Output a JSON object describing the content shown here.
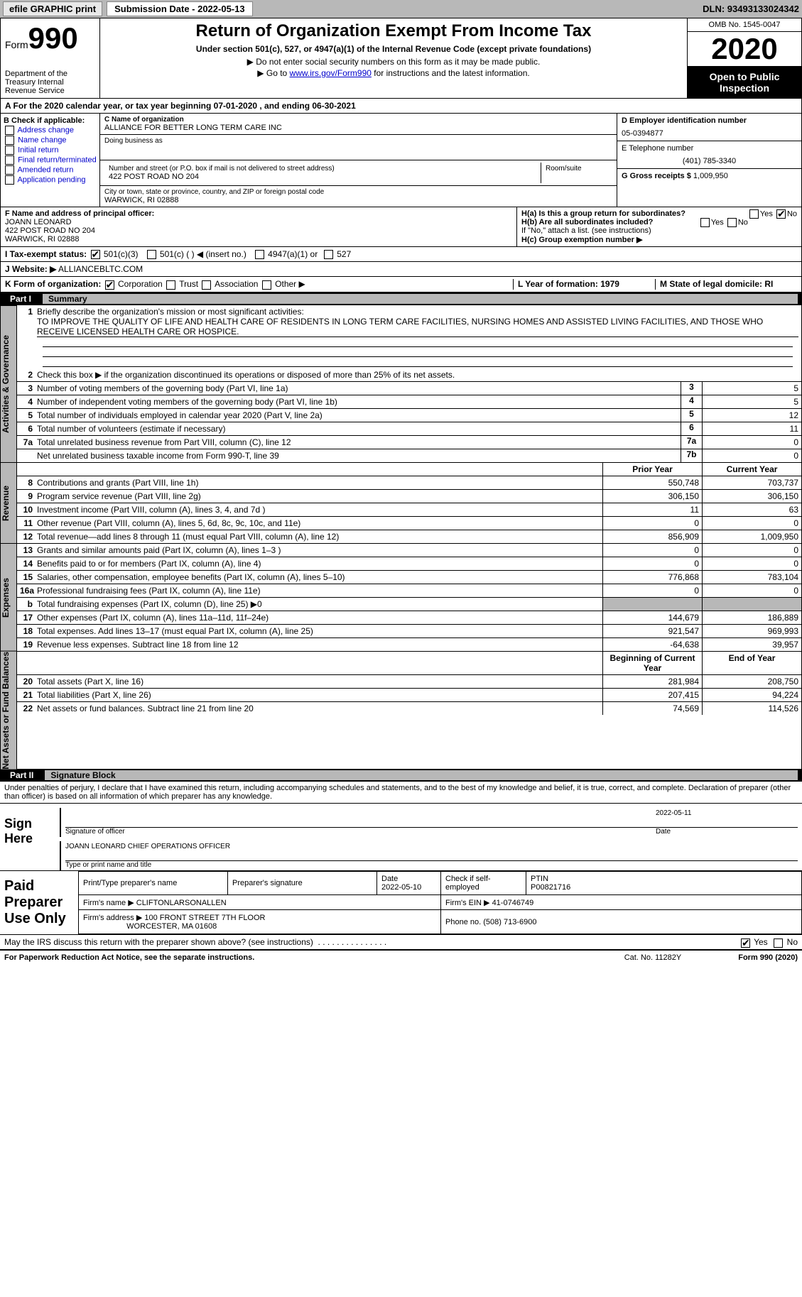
{
  "topbar": {
    "efile": "efile GRAPHIC print",
    "submission_label": "Submission Date - 2022-05-13",
    "dln": "DLN: 93493133024342"
  },
  "header": {
    "form_prefix": "Form",
    "form_number": "990",
    "dept": "Department of the Treasury\nInternal Revenue Service",
    "title": "Return of Organization Exempt From Income Tax",
    "subtitle": "Under section 501(c), 527, or 4947(a)(1) of the Internal Revenue Code (except private foundations)",
    "note1": "▶ Do not enter social security numbers on this form as it may be made public.",
    "note2_pre": "▶ Go to ",
    "note2_link": "www.irs.gov/Form990",
    "note2_post": " for instructions and the latest information.",
    "omb": "OMB No. 1545-0047",
    "year": "2020",
    "open": "Open to Public Inspection"
  },
  "rowA": "A For the 2020 calendar year, or tax year beginning 07-01-2020    , and ending 06-30-2021",
  "B": {
    "hdr": "B Check if applicable:",
    "items": [
      "Address change",
      "Name change",
      "Initial return",
      "Final return/terminated",
      "Amended return",
      "Application pending"
    ]
  },
  "C": {
    "name_lbl": "C Name of organization",
    "name": "ALLIANCE FOR BETTER LONG TERM CARE INC",
    "dba_lbl": "Doing business as",
    "street_lbl": "Number and street (or P.O. box if mail is not delivered to street address)",
    "room_lbl": "Room/suite",
    "street": "422 POST ROAD NO 204",
    "city_lbl": "City or town, state or province, country, and ZIP or foreign postal code",
    "city": "WARWICK, RI  02888"
  },
  "D": {
    "lbl": "D Employer identification number",
    "val": "05-0394877"
  },
  "E": {
    "lbl": "E Telephone number",
    "val": "(401) 785-3340"
  },
  "G": {
    "lbl": "G Gross receipts $",
    "val": "1,009,950"
  },
  "F": {
    "lbl": "F  Name and address of principal officer:",
    "name": "JOANN LEONARD",
    "addr1": "422 POST ROAD NO 204",
    "addr2": "WARWICK, RI  02888"
  },
  "H": {
    "a": "H(a)  Is this a group return for subordinates?",
    "b": "H(b)  Are all subordinates included?",
    "note": "If \"No,\" attach a list. (see instructions)",
    "c": "H(c)  Group exemption number ▶",
    "yes": "Yes",
    "no": "No"
  },
  "I": {
    "lbl": "I    Tax-exempt status:",
    "o1": "501(c)(3)",
    "o2": "501(c) (  ) ◀ (insert no.)",
    "o3": "4947(a)(1) or",
    "o4": "527"
  },
  "J": {
    "lbl": "J   Website: ▶",
    "val": " ALLIANCEBLTC.COM"
  },
  "K": {
    "lbl": "K Form of organization:",
    "o1": "Corporation",
    "o2": "Trust",
    "o3": "Association",
    "o4": "Other ▶"
  },
  "L": "L Year of formation: 1979",
  "M": "M State of legal domicile: RI",
  "part1": {
    "num": "Part I",
    "title": "Summary"
  },
  "summary": {
    "l1_lbl": "Briefly describe the organization's mission or most significant activities:",
    "l1_txt": "TO IMPROVE THE QUALITY OF LIFE AND HEALTH CARE OF RESIDENTS IN LONG TERM CARE FACILITIES, NURSING HOMES AND ASSISTED LIVING FACILITIES, AND THOSE WHO RECEIVE LICENSED HEALTH CARE OR HOSPICE.",
    "l2": "Check this box ▶       if the organization discontinued its operations or disposed of more than 25% of its net assets.",
    "l3": "Number of voting members of the governing body (Part VI, line 1a)",
    "l4": "Number of independent voting members of the governing body (Part VI, line 1b)",
    "l5": "Total number of individuals employed in calendar year 2020 (Part V, line 2a)",
    "l6": "Total number of volunteers (estimate if necessary)",
    "l7a": "Total unrelated business revenue from Part VIII, column (C), line 12",
    "l7b": "Net unrelated business taxable income from Form 990-T, line 39",
    "v3": "5",
    "v4": "5",
    "v5": "12",
    "v6": "11",
    "v7a": "0",
    "v7b": "0",
    "pycy_hdr_prior": "Prior Year",
    "pycy_hdr_curr": "Current Year",
    "rows_rev": [
      {
        "n": "8",
        "t": "Contributions and grants (Part VIII, line 1h)",
        "py": "550,748",
        "cy": "703,737"
      },
      {
        "n": "9",
        "t": "Program service revenue (Part VIII, line 2g)",
        "py": "306,150",
        "cy": "306,150"
      },
      {
        "n": "10",
        "t": "Investment income (Part VIII, column (A), lines 3, 4, and 7d )",
        "py": "11",
        "cy": "63"
      },
      {
        "n": "11",
        "t": "Other revenue (Part VIII, column (A), lines 5, 6d, 8c, 9c, 10c, and 11e)",
        "py": "0",
        "cy": "0"
      },
      {
        "n": "12",
        "t": "Total revenue—add lines 8 through 11 (must equal Part VIII, column (A), line 12)",
        "py": "856,909",
        "cy": "1,009,950"
      }
    ],
    "rows_exp": [
      {
        "n": "13",
        "t": "Grants and similar amounts paid (Part IX, column (A), lines 1–3 )",
        "py": "0",
        "cy": "0"
      },
      {
        "n": "14",
        "t": "Benefits paid to or for members (Part IX, column (A), line 4)",
        "py": "0",
        "cy": "0"
      },
      {
        "n": "15",
        "t": "Salaries, other compensation, employee benefits (Part IX, column (A), lines 5–10)",
        "py": "776,868",
        "cy": "783,104"
      },
      {
        "n": "16a",
        "t": "Professional fundraising fees (Part IX, column (A), line 11e)",
        "py": "0",
        "cy": "0"
      },
      {
        "n": "b",
        "t": "Total fundraising expenses (Part IX, column (D), line 25) ▶0",
        "py": "",
        "cy": "",
        "grey": true
      },
      {
        "n": "17",
        "t": "Other expenses (Part IX, column (A), lines 11a–11d, 11f–24e)",
        "py": "144,679",
        "cy": "186,889"
      },
      {
        "n": "18",
        "t": "Total expenses. Add lines 13–17 (must equal Part IX, column (A), line 25)",
        "py": "921,547",
        "cy": "969,993"
      },
      {
        "n": "19",
        "t": "Revenue less expenses. Subtract line 18 from line 12",
        "py": "-64,638",
        "cy": "39,957"
      }
    ],
    "nab_hdr_beg": "Beginning of Current Year",
    "nab_hdr_end": "End of Year",
    "rows_nab": [
      {
        "n": "20",
        "t": "Total assets (Part X, line 16)",
        "py": "281,984",
        "cy": "208,750"
      },
      {
        "n": "21",
        "t": "Total liabilities (Part X, line 26)",
        "py": "207,415",
        "cy": "94,224"
      },
      {
        "n": "22",
        "t": "Net assets or fund balances. Subtract line 21 from line 20",
        "py": "74,569",
        "cy": "114,526"
      }
    ],
    "vtabs": {
      "gov": "Activities & Governance",
      "rev": "Revenue",
      "exp": "Expenses",
      "nab": "Net Assets or Fund Balances"
    }
  },
  "part2": {
    "num": "Part II",
    "title": "Signature Block",
    "decl": "Under penalties of perjury, I declare that I have examined this return, including accompanying schedules and statements, and to the best of my knowledge and belief, it is true, correct, and complete. Declaration of preparer (other than officer) is based on all information of which preparer has any knowledge.",
    "sign_here": "Sign Here",
    "sig_officer": "Signature of officer",
    "sig_date": "2022-05-11",
    "sig_date_lbl": "Date",
    "officer_name": "JOANN LEONARD  CHIEF OPERATIONS OFFICER",
    "officer_lbl": "Type or print name and title",
    "paid": "Paid Preparer Use Only",
    "pp_name_lbl": "Print/Type preparer's name",
    "pp_sig_lbl": "Preparer's signature",
    "pp_date_lbl": "Date",
    "pp_date": "2022-05-10",
    "pp_chk": "Check         if self-employed",
    "ptin_lbl": "PTIN",
    "ptin": "P00821716",
    "firm_name_lbl": "Firm's name    ▶",
    "firm_name": "CLIFTONLARSONALLEN",
    "firm_ein_lbl": "Firm's EIN ▶",
    "firm_ein": "41-0746749",
    "firm_addr_lbl": "Firm's address ▶",
    "firm_addr1": "100 FRONT STREET 7TH FLOOR",
    "firm_addr2": "WORCESTER, MA  01608",
    "phone_lbl": "Phone no.",
    "phone": "(508) 713-6900",
    "may_irs": "May the IRS discuss this return with the preparer shown above? (see instructions)",
    "yes": "Yes",
    "no": "No"
  },
  "footer": {
    "left": "For Paperwork Reduction Act Notice, see the separate instructions.",
    "mid": "Cat. No. 11282Y",
    "right": "Form 990 (2020)"
  }
}
